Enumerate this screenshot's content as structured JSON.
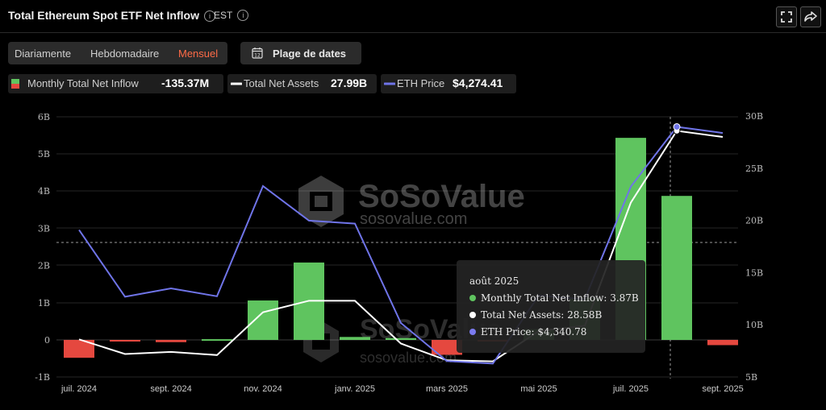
{
  "header": {
    "title": "Total Ethereum Spot ETF Net Inflow",
    "timezone": "EST"
  },
  "tabs": [
    {
      "label": "Diariamente",
      "active": false
    },
    {
      "label": "Hebdomadaire",
      "active": false
    },
    {
      "label": "Mensuel",
      "active": true
    }
  ],
  "date_range": {
    "label": "Plage de dates"
  },
  "legend": [
    {
      "name": "Monthly Total Net Inflow",
      "value": "-135.37M"
    },
    {
      "name": "Total Net Assets",
      "value": "27.99B"
    },
    {
      "name": "ETH Price",
      "value": "$4,274.41"
    }
  ],
  "tooltip": {
    "title": "août 2025",
    "rows": [
      {
        "text": "Monthly Total Net Inflow: 3.87B",
        "color": "#5fc45f"
      },
      {
        "text": "Total Net Assets: 28.58B",
        "color": "#ffffff"
      },
      {
        "text": "ETH Price: $4,340.78",
        "color": "#7b7bf0"
      }
    ]
  },
  "watermark": {
    "brand": "SoSoValue",
    "url": "sosovalue.com"
  },
  "colors": {
    "positive": "#5fc45f",
    "negative": "#e5483f",
    "assets_line": "#ffffff",
    "price_line": "#6f74e8"
  },
  "chart_data": {
    "type": "bar",
    "categories": [
      "juil. 2024",
      "août 2024",
      "sept. 2024",
      "oct. 2024",
      "nov. 2024",
      "déc. 2024",
      "janv. 2025",
      "févr. 2025",
      "mars 2025",
      "avr. 2025",
      "mai 2025",
      "juin 2025",
      "juil. 2025",
      "août 2025",
      "sept. 2025"
    ],
    "x_tick_labels": [
      "juil. 2024",
      "sept. 2024",
      "nov. 2024",
      "janv. 2025",
      "mars 2025",
      "mai 2025",
      "juil. 2025",
      "sept. 2025"
    ],
    "series": [
      {
        "name": "Monthly Total Net Inflow",
        "type": "bar",
        "axis": "left",
        "values": [
          -0.48,
          -0.01,
          -0.06,
          0.02,
          1.06,
          2.08,
          0.08,
          0.05,
          -0.4,
          -0.03,
          0.29,
          1.13,
          5.43,
          3.87,
          -0.14
        ]
      },
      {
        "name": "Total Net Assets",
        "type": "line",
        "axis": "right",
        "values": [
          8.6,
          7.2,
          7.4,
          7.1,
          11.2,
          12.3,
          12.3,
          8.2,
          6.6,
          6.5,
          9.4,
          9.9,
          21.7,
          28.58,
          27.99
        ]
      },
      {
        "name": "ETH Price",
        "type": "line",
        "axis": "right",
        "values": [
          3232,
          2513,
          2603,
          2518,
          3705,
          3332,
          3300,
          2231,
          1821,
          1794,
          2528,
          2485,
          3698,
          4340.78,
          4274.41
        ]
      }
    ],
    "left_axis": {
      "ticks": [
        "6B",
        "5B",
        "4B",
        "3B",
        "2B",
        "1B",
        "0",
        "-1B"
      ],
      "range": [
        -1,
        6
      ]
    },
    "right_axis": {
      "ticks": [
        "30B",
        "25B",
        "20B",
        "15B",
        "10B",
        "5B"
      ],
      "range": [
        5,
        30
      ]
    },
    "dashed_reference": 2.6,
    "highlight_index": 13
  }
}
